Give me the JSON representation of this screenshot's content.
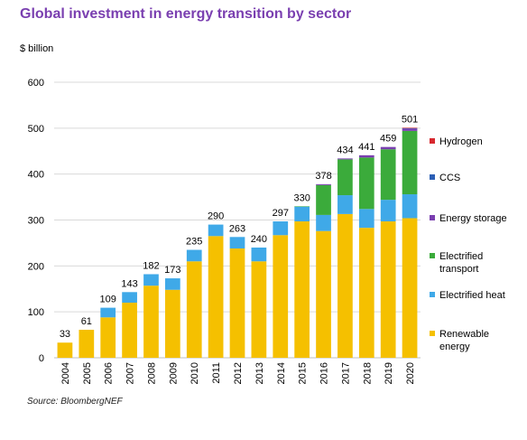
{
  "chart_data": {
    "type": "bar",
    "stacked": true,
    "title": "Global investment in energy transition by sector",
    "ylabel": "$ billion",
    "xlabel": "",
    "ylim": [
      0,
      600
    ],
    "yticks": [
      0,
      100,
      200,
      300,
      400,
      500,
      600
    ],
    "grid": true,
    "legend_position": "right",
    "source": "Source: BloombergNEF",
    "categories": [
      "2004",
      "2005",
      "2006",
      "2007",
      "2008",
      "2009",
      "2010",
      "2011",
      "2012",
      "2013",
      "2014",
      "2015",
      "2016",
      "2017",
      "2018",
      "2019",
      "2020"
    ],
    "totals": [
      33,
      61,
      109,
      143,
      182,
      173,
      235,
      290,
      263,
      240,
      297,
      330,
      378,
      434,
      441,
      459,
      501
    ],
    "series": [
      {
        "name": "Renewable\nenergy",
        "color": "#f5c000",
        "values": [
          33,
          61,
          88,
          120,
          157,
          148,
          210,
          265,
          238,
          210,
          267,
          297,
          276,
          313,
          283,
          297,
          304
        ]
      },
      {
        "name": "Electrified heat",
        "color": "#3fa9e8",
        "values": [
          0,
          0,
          21,
          23,
          25,
          25,
          25,
          25,
          25,
          30,
          30,
          32,
          35,
          41,
          41,
          47,
          52
        ]
      },
      {
        "name": "Electrified\ntransport",
        "color": "#3bab3b",
        "values": [
          0,
          0,
          0,
          0,
          0,
          0,
          0,
          0,
          0,
          0,
          0,
          1,
          65,
          78,
          112,
          110,
          138
        ]
      },
      {
        "name": "Energy storage",
        "color": "#7a3fb0",
        "values": [
          0,
          0,
          0,
          0,
          0,
          0,
          0,
          0,
          0,
          0,
          0,
          0,
          2,
          2,
          5,
          5,
          5
        ]
      },
      {
        "name": "CCS",
        "color": "#2c5fb5",
        "values": [
          0,
          0,
          0,
          0,
          0,
          0,
          0,
          0,
          0,
          0,
          0,
          0,
          0,
          0,
          0,
          0,
          1
        ]
      },
      {
        "name": "Hydrogen",
        "color": "#d7282f",
        "values": [
          0,
          0,
          0,
          0,
          0,
          0,
          0,
          0,
          0,
          0,
          0,
          0,
          0,
          0,
          0,
          0,
          1
        ]
      }
    ],
    "legend_order": [
      "Hydrogen",
      "CCS",
      "Energy storage",
      "Electrified\ntransport",
      "Electrified heat",
      "Renewable\nenergy"
    ]
  }
}
